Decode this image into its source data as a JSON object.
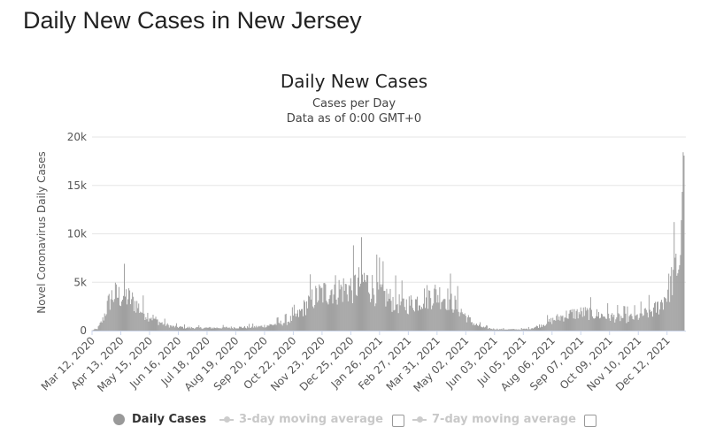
{
  "page": {
    "title": "Daily New Cases in New Jersey"
  },
  "chart_data": {
    "type": "bar",
    "title": "Daily New Cases",
    "subtitle_lines": [
      "Cases per Day",
      "Data as of 0:00 GMT+0"
    ],
    "ylabel": "Novel Coronavirus Daily Cases",
    "ylim": [
      0,
      20000
    ],
    "yticks": [
      0,
      5000,
      10000,
      15000,
      20000
    ],
    "ytick_labels": [
      "0",
      "5k",
      "10k",
      "15k",
      "20k"
    ],
    "grid": true,
    "color": "#9a9a9a",
    "x_start": "2020-03-12",
    "x_end": "2021-12-31",
    "xtick_labels": [
      "Mar 12, 2020",
      "Apr 13, 2020",
      "May 15, 2020",
      "Jun 16, 2020",
      "Jul 18, 2020",
      "Aug 19, 2020",
      "Sep 20, 2020",
      "Oct 22, 2020",
      "Nov 23, 2020",
      "Dec 25, 2020",
      "Jan 26, 2021",
      "Feb 27, 2021",
      "Mar 31, 2021",
      "May 02, 2021",
      "Jun 03, 2021",
      "Jul 05, 2021",
      "Aug 06, 2021",
      "Sep 07, 2021",
      "Oct 09, 2021",
      "Nov 10, 2021",
      "Dec 12, 2021"
    ],
    "series": [
      {
        "name": "Daily Cases",
        "points": [
          [
            "2020-03-12",
            20
          ],
          [
            "2020-03-18",
            200
          ],
          [
            "2020-03-24",
            1200
          ],
          [
            "2020-03-30",
            3000
          ],
          [
            "2020-04-03",
            3800
          ],
          [
            "2020-04-07",
            4000
          ],
          [
            "2020-04-13",
            3800
          ],
          [
            "2020-04-18",
            3900
          ],
          [
            "2020-04-24",
            3500
          ],
          [
            "2020-04-30",
            3000
          ],
          [
            "2020-05-06",
            2200
          ],
          [
            "2020-05-12",
            1800
          ],
          [
            "2020-05-18",
            1500
          ],
          [
            "2020-05-25",
            1000
          ],
          [
            "2020-06-01",
            700
          ],
          [
            "2020-06-10",
            450
          ],
          [
            "2020-06-20",
            380
          ],
          [
            "2020-07-01",
            320
          ],
          [
            "2020-07-15",
            300
          ],
          [
            "2020-08-01",
            320
          ],
          [
            "2020-08-15",
            350
          ],
          [
            "2020-09-01",
            380
          ],
          [
            "2020-09-15",
            450
          ],
          [
            "2020-10-01",
            700
          ],
          [
            "2020-10-15",
            1000
          ],
          [
            "2020-10-28",
            1800
          ],
          [
            "2020-11-05",
            2800
          ],
          [
            "2020-11-12",
            3500
          ],
          [
            "2020-11-20",
            4000
          ],
          [
            "2020-11-28",
            4300
          ],
          [
            "2020-12-05",
            4700
          ],
          [
            "2020-12-12",
            4600
          ],
          [
            "2020-12-19",
            4700
          ],
          [
            "2020-12-26",
            4800
          ],
          [
            "2021-01-02",
            5200
          ],
          [
            "2021-01-09",
            5600
          ],
          [
            "2021-01-16",
            5000
          ],
          [
            "2021-01-23",
            4400
          ],
          [
            "2021-02-01",
            3900
          ],
          [
            "2021-02-10",
            3300
          ],
          [
            "2021-02-20",
            2900
          ],
          [
            "2021-03-01",
            3000
          ],
          [
            "2021-03-10",
            3400
          ],
          [
            "2021-03-20",
            3800
          ],
          [
            "2021-03-30",
            4100
          ],
          [
            "2021-04-08",
            3800
          ],
          [
            "2021-04-16",
            3300
          ],
          [
            "2021-04-25",
            2400
          ],
          [
            "2021-05-03",
            1500
          ],
          [
            "2021-05-12",
            700
          ],
          [
            "2021-05-22",
            350
          ],
          [
            "2021-06-01",
            200
          ],
          [
            "2021-06-15",
            140
          ],
          [
            "2021-07-01",
            140
          ],
          [
            "2021-07-12",
            220
          ],
          [
            "2021-07-22",
            500
          ],
          [
            "2021-08-01",
            900
          ],
          [
            "2021-08-10",
            1300
          ],
          [
            "2021-08-20",
            1700
          ],
          [
            "2021-08-30",
            1900
          ],
          [
            "2021-09-10",
            2000
          ],
          [
            "2021-09-20",
            1900
          ],
          [
            "2021-10-01",
            1700
          ],
          [
            "2021-10-15",
            1500
          ],
          [
            "2021-10-28",
            1400
          ],
          [
            "2021-11-08",
            1500
          ],
          [
            "2021-11-18",
            1900
          ],
          [
            "2021-11-28",
            2300
          ],
          [
            "2021-12-05",
            3000
          ],
          [
            "2021-12-12",
            4200
          ],
          [
            "2021-12-18",
            5800
          ],
          [
            "2021-12-22",
            7000
          ],
          [
            "2021-12-25",
            7500
          ],
          [
            "2021-12-27",
            9000
          ],
          [
            "2021-12-28",
            11500
          ],
          [
            "2021-12-29",
            15000
          ],
          [
            "2021-12-30",
            18500
          ],
          [
            "2021-12-31",
            18800
          ]
        ]
      }
    ],
    "legend": [
      {
        "label": "Daily Cases",
        "active": true
      },
      {
        "label": "3-day moving average",
        "active": false
      },
      {
        "label": "7-day moving average",
        "active": false
      }
    ]
  }
}
